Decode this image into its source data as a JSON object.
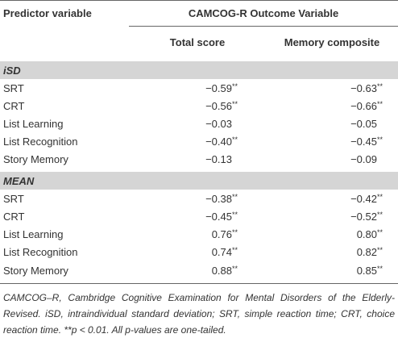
{
  "header": {
    "predictor": "Predictor variable",
    "outcome": "CAMCOG-R Outcome Variable",
    "columns": [
      "Total score",
      "Memory composite"
    ]
  },
  "sections": [
    {
      "title": "iSD",
      "rows": [
        {
          "label": "SRT",
          "cells": [
            {
              "value": "−0.59",
              "sig": "**"
            },
            {
              "value": "−0.63",
              "sig": "**"
            }
          ]
        },
        {
          "label": "CRT",
          "cells": [
            {
              "value": "−0.56",
              "sig": "**"
            },
            {
              "value": "−0.66",
              "sig": "**"
            }
          ]
        },
        {
          "label": "List Learning",
          "cells": [
            {
              "value": "−0.03"
            },
            {
              "value": "−0.05"
            }
          ]
        },
        {
          "label": "List Recognition",
          "cells": [
            {
              "value": "−0.40",
              "sig": "**"
            },
            {
              "value": "−0.45",
              "sig": "**"
            }
          ]
        },
        {
          "label": "Story Memory",
          "cells": [
            {
              "value": "−0.13"
            },
            {
              "value": "−0.09"
            }
          ]
        }
      ]
    },
    {
      "title": "MEAN",
      "rows": [
        {
          "label": "SRT",
          "cells": [
            {
              "value": "−0.38",
              "sig": "**"
            },
            {
              "value": "−0.42",
              "sig": "**"
            }
          ]
        },
        {
          "label": "CRT",
          "cells": [
            {
              "value": "−0.45",
              "sig": "**"
            },
            {
              "value": "−0.52",
              "sig": "**"
            }
          ]
        },
        {
          "label": "List Learning",
          "cells": [
            {
              "value": "0.76",
              "sig": "**"
            },
            {
              "value": "0.80",
              "sig": "**"
            }
          ]
        },
        {
          "label": "List Recognition",
          "cells": [
            {
              "value": "0.74",
              "sig": "**"
            },
            {
              "value": "0.82",
              "sig": "**"
            }
          ]
        },
        {
          "label": "Story Memory",
          "cells": [
            {
              "value": "0.88",
              "sig": "**"
            },
            {
              "value": "0.85",
              "sig": "**"
            }
          ]
        }
      ]
    }
  ],
  "footnote": "CAMCOG–R, Cambridge Cognitive Examination for Mental Disorders of the Elderly-Revised. iSD, intraindividual standard deviation; SRT, simple reaction time; CRT, choice reaction time. **p < 0.01. All p-values are one-tailed."
}
